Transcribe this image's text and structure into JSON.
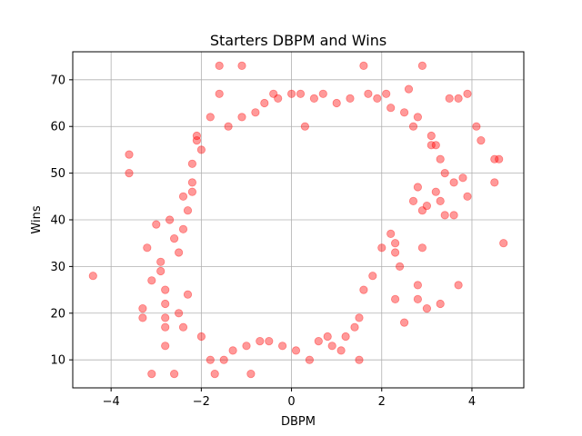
{
  "chart_data": {
    "type": "scatter",
    "title": "Starters DBPM and Wins",
    "xlabel": "DBPM",
    "ylabel": "Wins",
    "xlim": [
      -4.85,
      5.15
    ],
    "ylim": [
      4,
      76
    ],
    "xticks": [
      -4,
      -2,
      0,
      2,
      4
    ],
    "yticks": [
      10,
      20,
      30,
      40,
      50,
      60,
      70
    ],
    "xtick_labels": [
      "−4",
      "−2",
      "0",
      "2",
      "4"
    ],
    "ytick_labels": [
      "10",
      "20",
      "30",
      "40",
      "50",
      "60",
      "70"
    ],
    "grid": true,
    "marker_color": "#ff0000",
    "marker_alpha": 0.4,
    "series": [
      {
        "points": [
          [
            -4.4,
            28
          ],
          [
            -3.6,
            54
          ],
          [
            -3.6,
            50
          ],
          [
            -3.3,
            21
          ],
          [
            -3.3,
            19
          ],
          [
            -3.2,
            34
          ],
          [
            -3.1,
            7
          ],
          [
            -3.1,
            27
          ],
          [
            -3.0,
            39
          ],
          [
            -2.9,
            31
          ],
          [
            -2.9,
            29
          ],
          [
            -2.8,
            25
          ],
          [
            -2.8,
            22
          ],
          [
            -2.8,
            19
          ],
          [
            -2.8,
            17
          ],
          [
            -2.8,
            13
          ],
          [
            -2.7,
            40
          ],
          [
            -2.6,
            36
          ],
          [
            -2.6,
            7
          ],
          [
            -2.4,
            45
          ],
          [
            -2.3,
            42
          ],
          [
            -2.3,
            24
          ],
          [
            -2.2,
            52
          ],
          [
            -2.2,
            46
          ],
          [
            -2.1,
            58
          ],
          [
            -2.1,
            57
          ],
          [
            -1.7,
            7
          ],
          [
            -1.6,
            73
          ],
          [
            -1.6,
            67
          ],
          [
            -1.1,
            73
          ],
          [
            -0.9,
            7
          ],
          [
            -0.4,
            67
          ],
          [
            0.2,
            67
          ],
          [
            0.3,
            60
          ],
          [
            0.5,
            66
          ],
          [
            1.0,
            65
          ],
          [
            1.1,
            12
          ],
          [
            1.5,
            10
          ],
          [
            1.6,
            73
          ],
          [
            1.7,
            67
          ],
          [
            2.1,
            67
          ],
          [
            2.3,
            35
          ],
          [
            2.3,
            23
          ],
          [
            2.5,
            18
          ],
          [
            2.6,
            68
          ],
          [
            2.7,
            60
          ],
          [
            2.8,
            23
          ],
          [
            2.8,
            26
          ],
          [
            2.9,
            73
          ],
          [
            2.9,
            34
          ],
          [
            2.9,
            42
          ],
          [
            3.0,
            21
          ],
          [
            3.1,
            58
          ],
          [
            3.2,
            56
          ],
          [
            3.3,
            44
          ],
          [
            3.3,
            22
          ],
          [
            3.4,
            50
          ],
          [
            3.5,
            66
          ],
          [
            3.6,
            48
          ],
          [
            3.6,
            41
          ],
          [
            3.7,
            66
          ],
          [
            3.7,
            26
          ],
          [
            3.8,
            49
          ],
          [
            3.9,
            67
          ],
          [
            3.9,
            45
          ],
          [
            4.1,
            60
          ],
          [
            4.2,
            57
          ],
          [
            4.5,
            53
          ],
          [
            4.5,
            48
          ],
          [
            4.6,
            53
          ],
          [
            4.7,
            35
          ],
          [
            3.3,
            53
          ],
          [
            3.2,
            46
          ],
          [
            3.4,
            41
          ],
          [
            3.0,
            43
          ],
          [
            2.8,
            47
          ],
          [
            2.7,
            44
          ],
          [
            2.4,
            30
          ],
          [
            2.3,
            33
          ],
          [
            2.2,
            37
          ],
          [
            2.0,
            34
          ],
          [
            1.8,
            28
          ],
          [
            1.6,
            25
          ],
          [
            1.5,
            19
          ],
          [
            1.4,
            17
          ],
          [
            1.2,
            15
          ],
          [
            0.9,
            13
          ],
          [
            0.8,
            15
          ],
          [
            0.6,
            14
          ],
          [
            0.4,
            10
          ],
          [
            0.1,
            12
          ],
          [
            -0.2,
            13
          ],
          [
            -0.5,
            14
          ],
          [
            -0.7,
            14
          ],
          [
            -1.0,
            13
          ],
          [
            -1.3,
            12
          ],
          [
            -1.5,
            10
          ],
          [
            -1.8,
            10
          ],
          [
            -2.0,
            15
          ],
          [
            -2.4,
            17
          ],
          [
            -2.5,
            20
          ],
          [
            -2.5,
            33
          ],
          [
            -2.4,
            38
          ],
          [
            -2.2,
            48
          ],
          [
            -2.0,
            55
          ],
          [
            -1.8,
            62
          ],
          [
            -1.4,
            60
          ],
          [
            -1.1,
            62
          ],
          [
            -0.8,
            63
          ],
          [
            -0.6,
            65
          ],
          [
            -0.3,
            66
          ],
          [
            0.0,
            67
          ],
          [
            0.7,
            67
          ],
          [
            1.3,
            66
          ],
          [
            1.9,
            66
          ],
          [
            2.2,
            64
          ],
          [
            2.5,
            63
          ],
          [
            2.8,
            62
          ],
          [
            3.1,
            56
          ]
        ]
      }
    ]
  }
}
